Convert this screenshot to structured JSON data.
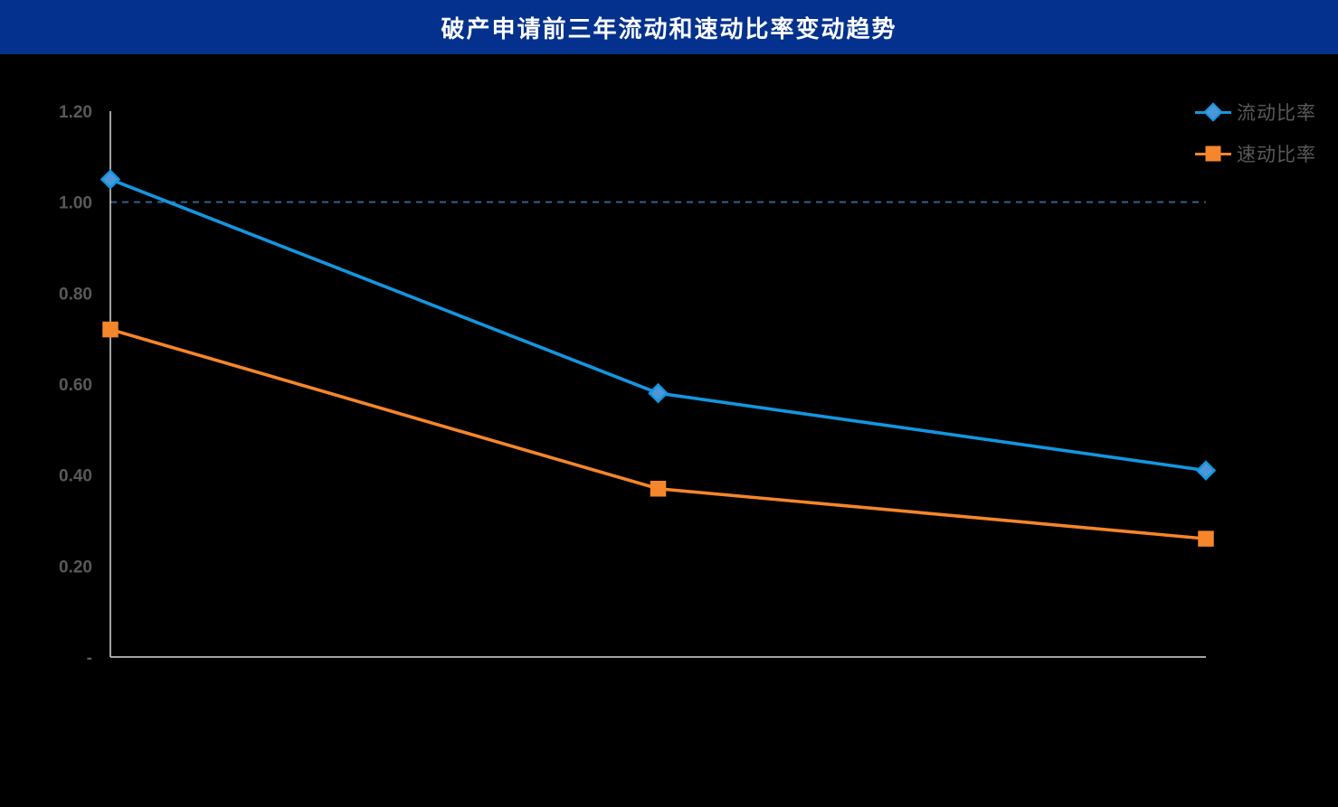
{
  "title_bar": {
    "title": "破产申请前三年流动和速动比率变动趋势",
    "background": "#03318d",
    "text_color": "#ffffff"
  },
  "chart_data": {
    "type": "line",
    "title": "破产申请前三年流动和速动比率变动趋势",
    "categories": [
      "",
      "",
      ""
    ],
    "x_axis_labels_visible": false,
    "series": [
      {
        "name": "流动比率",
        "values": [
          1.05,
          0.58,
          0.41
        ],
        "color": "#1496e0",
        "marker": "diamond",
        "marker_fill": "#4d97d8"
      },
      {
        "name": "速动比率",
        "values": [
          0.72,
          0.37,
          0.26
        ],
        "color": "#f5862b",
        "marker": "square",
        "marker_fill": "#f5862b"
      }
    ],
    "ylim": [
      0,
      1.2
    ],
    "yticks": [
      {
        "value": 1.2,
        "label": "1.20"
      },
      {
        "value": 1.0,
        "label": "1.00"
      },
      {
        "value": 0.8,
        "label": "0.80"
      },
      {
        "value": 0.6,
        "label": "0.60"
      },
      {
        "value": 0.4,
        "label": "0.40"
      },
      {
        "value": 0.2,
        "label": "0.20"
      },
      {
        "value": 0.0,
        "label": "-"
      }
    ],
    "reference_line": {
      "value": 1.0,
      "style": "dashed",
      "color": "#33618f"
    },
    "grid": false,
    "legend_position": "top-right",
    "plot_background": "#000000",
    "axis_color": "#d9d9d9",
    "tick_label_color": "#595959",
    "legend_text_color": "#595959"
  }
}
